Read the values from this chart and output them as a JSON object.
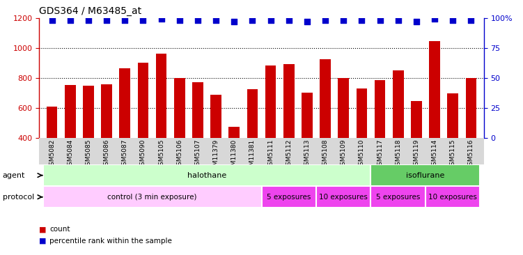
{
  "title": "GDS364 / M63485_at",
  "samples": [
    "GSM5082",
    "GSM5084",
    "GSM5085",
    "GSM5086",
    "GSM5087",
    "GSM5090",
    "GSM5105",
    "GSM5106",
    "GSM5107",
    "GSM11379",
    "GSM11380",
    "GSM11381",
    "GSM5111",
    "GSM5112",
    "GSM5113",
    "GSM5108",
    "GSM5109",
    "GSM5110",
    "GSM5117",
    "GSM5118",
    "GSM5119",
    "GSM5114",
    "GSM5115",
    "GSM5116"
  ],
  "counts": [
    608,
    752,
    748,
    758,
    863,
    900,
    960,
    800,
    770,
    685,
    475,
    725,
    882,
    893,
    700,
    925,
    800,
    728,
    783,
    848,
    645,
    1045,
    695,
    800
  ],
  "percentiles": [
    98,
    98,
    98,
    98,
    98,
    98,
    99,
    98,
    98,
    98,
    97,
    98,
    98,
    98,
    97,
    98,
    98,
    98,
    98,
    98,
    97,
    99,
    98,
    98
  ],
  "bar_color": "#cc0000",
  "dot_color": "#0000cc",
  "ylim_left": [
    400,
    1200
  ],
  "ylim_right": [
    0,
    100
  ],
  "yticks_left": [
    400,
    600,
    800,
    1000,
    1200
  ],
  "yticks_right": [
    0,
    25,
    50,
    75,
    100
  ],
  "ytick_right_labels": [
    "0",
    "25",
    "50",
    "75",
    "100%"
  ],
  "grid_lines": [
    600,
    800,
    1000
  ],
  "agent_groups": [
    {
      "label": "halothane",
      "start": 0,
      "end": 18,
      "color": "#ccffcc"
    },
    {
      "label": "isoflurane",
      "start": 18,
      "end": 24,
      "color": "#66cc66"
    }
  ],
  "protocol_groups": [
    {
      "label": "control (3 min exposure)",
      "start": 0,
      "end": 12,
      "color": "#ffccff"
    },
    {
      "label": "5 exposures",
      "start": 12,
      "end": 15,
      "color": "#ff88ff"
    },
    {
      "label": "10 exposures",
      "start": 15,
      "end": 18,
      "color": "#ff88ff"
    },
    {
      "label": "5 exposures",
      "start": 18,
      "end": 21,
      "color": "#ff88ff"
    },
    {
      "label": "10 exposures",
      "start": 21,
      "end": 24,
      "color": "#ff88ff"
    }
  ],
  "left_axis_color": "#cc0000",
  "right_axis_color": "#0000cc",
  "bar_width": 0.6,
  "dot_marker": "s",
  "dot_size": 28,
  "ticklabel_bg": "#d0d0d0"
}
